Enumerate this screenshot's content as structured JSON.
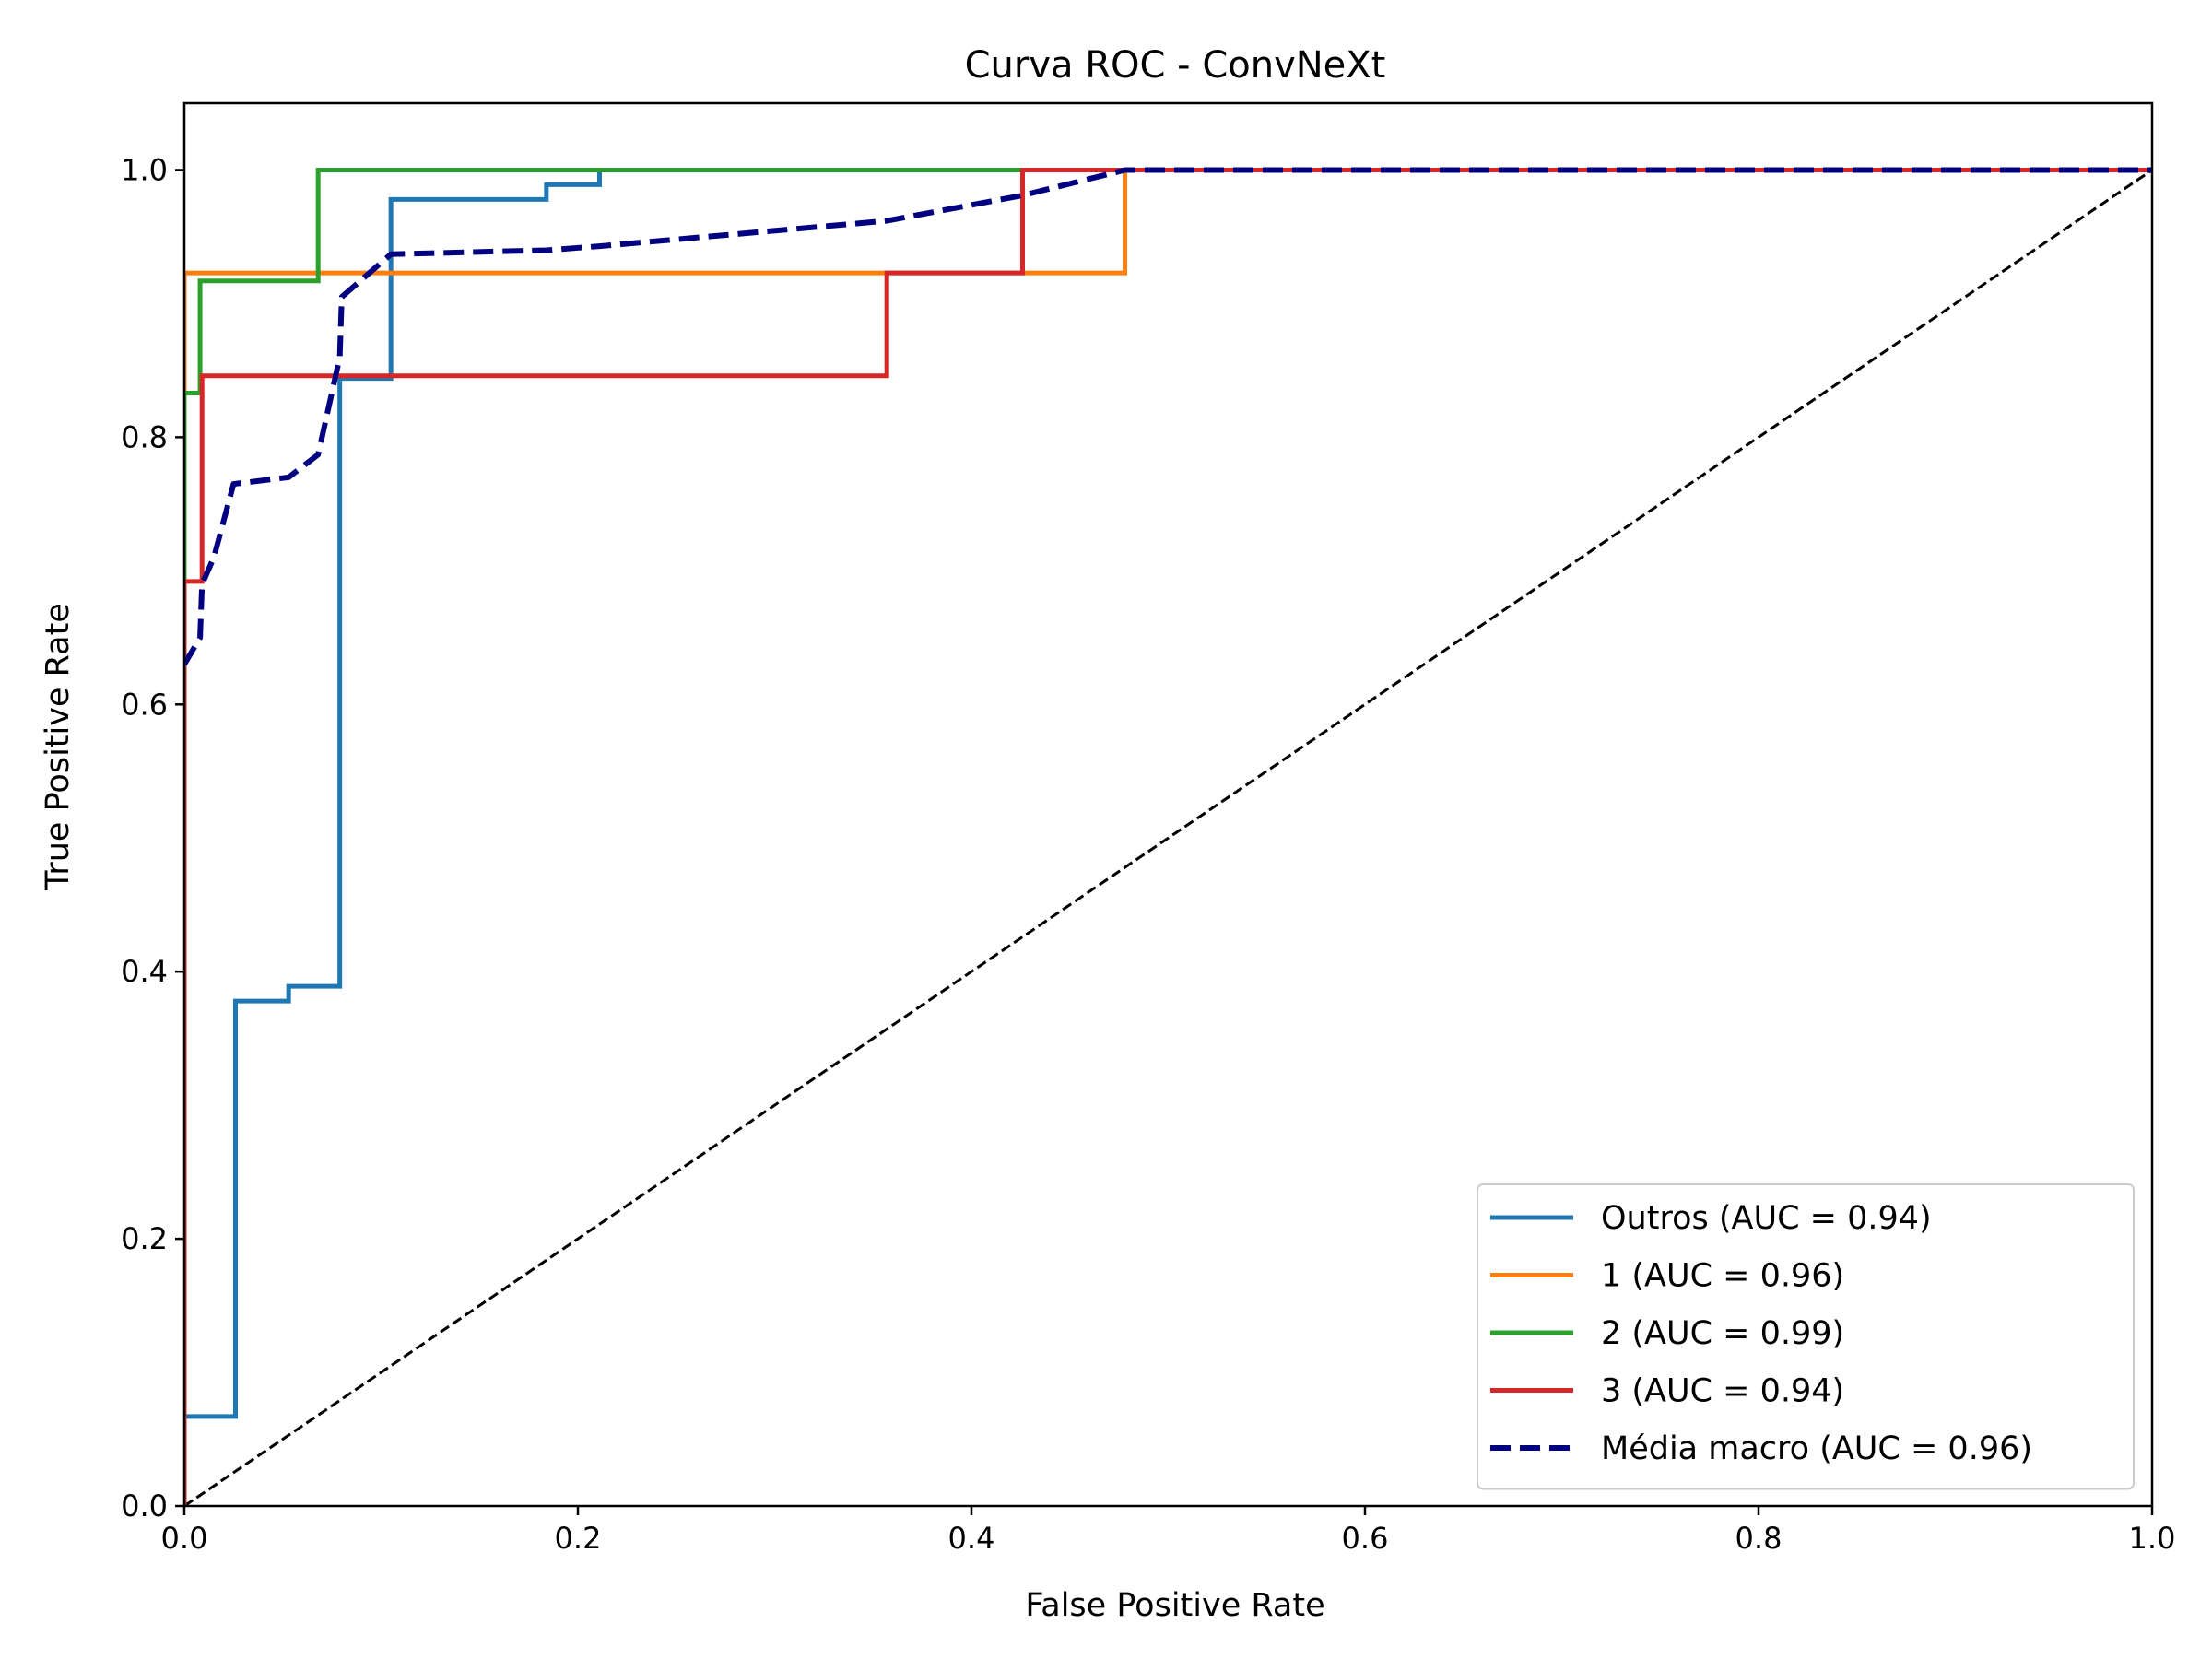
{
  "chart_data": {
    "type": "line",
    "title": "Curva ROC - ConvNeXt",
    "xlabel": "False Positive Rate",
    "ylabel": "True Positive Rate",
    "xlim": [
      0.0,
      1.0
    ],
    "ylim": [
      0.0,
      1.05
    ],
    "xticks": [
      "0.0",
      "0.2",
      "0.4",
      "0.6",
      "0.8",
      "1.0"
    ],
    "yticks": [
      "0.0",
      "0.2",
      "0.4",
      "0.6",
      "0.8",
      "1.0"
    ],
    "grid": false,
    "legend_position": "lower-right",
    "series": [
      {
        "name": "Outros (AUC = 0.94)",
        "color": "#1f77b4",
        "style": "solid",
        "points": [
          [
            0,
            0
          ],
          [
            0,
            0.067
          ],
          [
            0.026,
            0.067
          ],
          [
            0.026,
            0.378
          ],
          [
            0.053,
            0.378
          ],
          [
            0.053,
            0.389
          ],
          [
            0.079,
            0.389
          ],
          [
            0.079,
            0.844
          ],
          [
            0.105,
            0.844
          ],
          [
            0.105,
            0.978
          ],
          [
            0.184,
            0.978
          ],
          [
            0.184,
            0.989
          ],
          [
            0.211,
            0.989
          ],
          [
            0.211,
            1.0
          ],
          [
            1.0,
            1.0
          ]
        ]
      },
      {
        "name": "1 (AUC = 0.96)",
        "color": "#ff7f0e",
        "style": "solid",
        "points": [
          [
            0,
            0
          ],
          [
            0,
            0.923
          ],
          [
            0.478,
            0.923
          ],
          [
            0.478,
            1.0
          ],
          [
            1.0,
            1.0
          ]
        ]
      },
      {
        "name": "2 (AUC = 0.99)",
        "color": "#2ca02c",
        "style": "solid",
        "points": [
          [
            0,
            0
          ],
          [
            0,
            0.833
          ],
          [
            0.008,
            0.833
          ],
          [
            0.008,
            0.917
          ],
          [
            0.068,
            0.917
          ],
          [
            0.068,
            1.0
          ],
          [
            1.0,
            1.0
          ]
        ]
      },
      {
        "name": "3 (AUC = 0.94)",
        "color": "#d62728",
        "style": "solid",
        "points": [
          [
            0,
            0
          ],
          [
            0,
            0.692
          ],
          [
            0.009,
            0.692
          ],
          [
            0.009,
            0.846
          ],
          [
            0.357,
            0.846
          ],
          [
            0.357,
            0.923
          ],
          [
            0.426,
            0.923
          ],
          [
            0.426,
            1.0
          ],
          [
            1.0,
            1.0
          ]
        ]
      },
      {
        "name": "Média macro (AUC = 0.96)",
        "color": "#000080",
        "style": "dashed",
        "points": [
          [
            0,
            0.63
          ],
          [
            0.008,
            0.65
          ],
          [
            0.009,
            0.69
          ],
          [
            0.015,
            0.71
          ],
          [
            0.025,
            0.765
          ],
          [
            0.053,
            0.77
          ],
          [
            0.068,
            0.787
          ],
          [
            0.079,
            0.86
          ],
          [
            0.08,
            0.905
          ],
          [
            0.105,
            0.937
          ],
          [
            0.184,
            0.94
          ],
          [
            0.211,
            0.943
          ],
          [
            0.357,
            0.962
          ],
          [
            0.426,
            0.981
          ],
          [
            0.478,
            1.0
          ],
          [
            1.0,
            1.0
          ]
        ]
      }
    ],
    "reference_line": {
      "color": "#000000",
      "style": "dashed",
      "points": [
        [
          0,
          0
        ],
        [
          1,
          1
        ]
      ]
    }
  }
}
